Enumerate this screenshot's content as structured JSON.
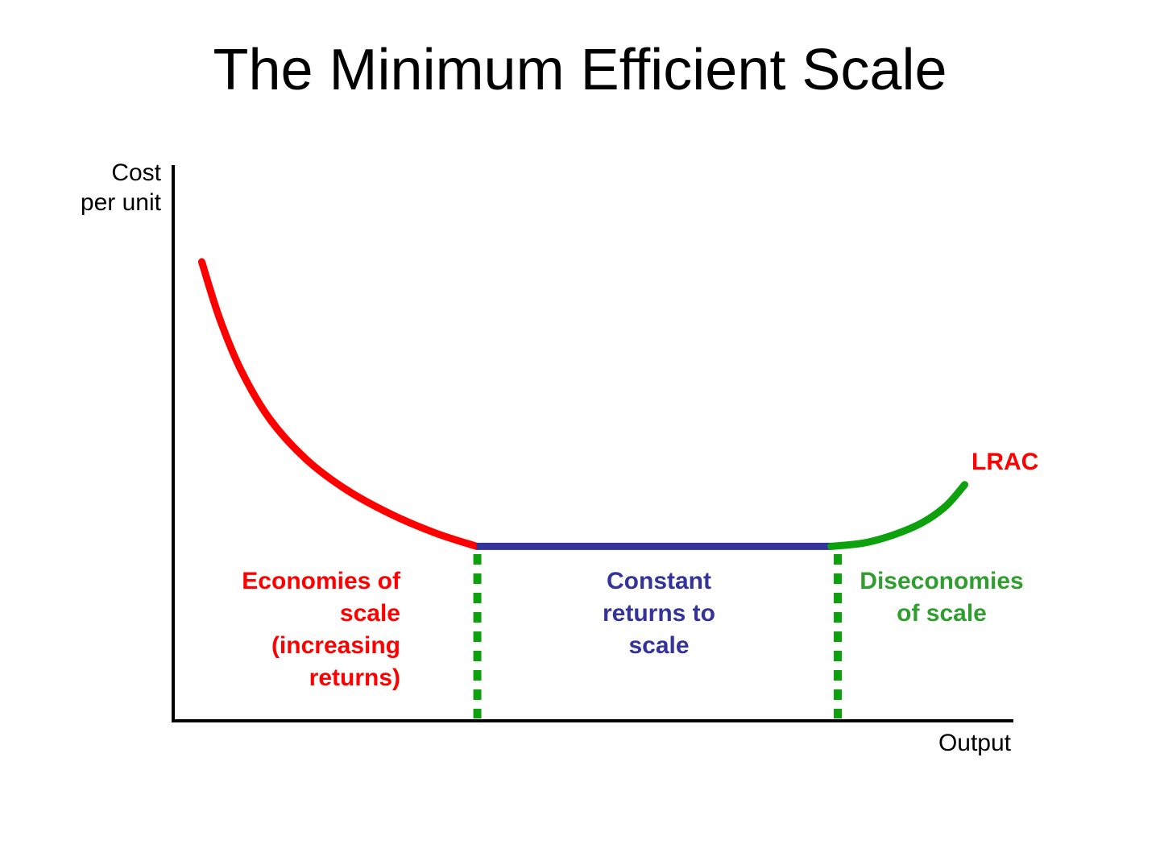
{
  "title": "The Minimum Efficient Scale",
  "axes": {
    "y_label_line1": "Cost",
    "y_label_line2": "per unit",
    "x_label": "Output"
  },
  "labels": {
    "lrac": "LRAC",
    "economies": {
      "lines": [
        "Economies of",
        "scale",
        "(increasing",
        "returns)"
      ]
    },
    "constant": {
      "lines": [
        "Constant",
        "returns to",
        "scale"
      ]
    },
    "diseconomies": {
      "lines": [
        "Diseconomies",
        "of scale"
      ]
    }
  },
  "colors": {
    "red": "#ff0000",
    "blue": "#333399",
    "green": "#0da10d",
    "green_text": "#2f9e2f",
    "axis": "#000000"
  },
  "chart_data": {
    "type": "line",
    "title": "The Minimum Efficient Scale",
    "xlabel": "Output",
    "ylabel": "Cost per unit",
    "xlim": [
      0,
      100
    ],
    "ylim": [
      0,
      100
    ],
    "grid": false,
    "legend": "none",
    "series": [
      {
        "name": "LRAC - economies of scale (increasing returns)",
        "color": "#ff0000",
        "points": [
          [
            3.4,
            82.6
          ],
          [
            5.5,
            72.5
          ],
          [
            8.1,
            63.0
          ],
          [
            11.5,
            54.3
          ],
          [
            15.8,
            47.1
          ],
          [
            20.6,
            41.6
          ],
          [
            25.9,
            37.2
          ],
          [
            31.2,
            33.8
          ],
          [
            36.1,
            31.4
          ]
        ]
      },
      {
        "name": "LRAC - constant returns to scale",
        "color": "#333399",
        "points": [
          [
            36.1,
            31.4
          ],
          [
            78.3,
            31.4
          ]
        ]
      },
      {
        "name": "LRAC - diseconomies of scale",
        "color": "#0da10d",
        "points": [
          [
            78.3,
            31.4
          ],
          [
            82.2,
            32.0
          ],
          [
            85.8,
            33.5
          ],
          [
            89.2,
            35.7
          ],
          [
            92.0,
            38.7
          ],
          [
            94.2,
            42.5
          ]
        ]
      }
    ],
    "boundaries": [
      {
        "x": 36.2,
        "y_top": 30,
        "label": "start of constant returns region"
      },
      {
        "x": 79.1,
        "y_top": 30,
        "label": "start of diseconomies region"
      }
    ],
    "annotations": [
      "Economies of scale (increasing returns)",
      "Constant returns to scale",
      "Diseconomies of scale",
      "LRAC"
    ]
  }
}
